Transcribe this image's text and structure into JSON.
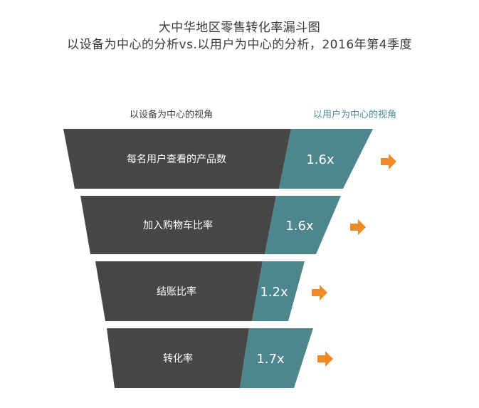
{
  "title": {
    "line1": "大中华地区零售转化率漏斗图",
    "line2": "以设备为中心的分析vs.以用户为中心的分析，2016年第4季度"
  },
  "column_headers": {
    "left": "以设备为中心的视角",
    "right": "以用户为中心的视角"
  },
  "stages": [
    {
      "label": "每名用户查看的产品数",
      "value": "1.6x"
    },
    {
      "label": "加入购物车比率",
      "value": "1.6x"
    },
    {
      "label": "结账比率",
      "value": "1.2x"
    },
    {
      "label": "转化率",
      "value": "1.7x"
    }
  ],
  "colors": {
    "dark": "#474747",
    "teal": "#4d868c",
    "arrow": "#f08a24",
    "title": "#3a3a3a"
  }
}
